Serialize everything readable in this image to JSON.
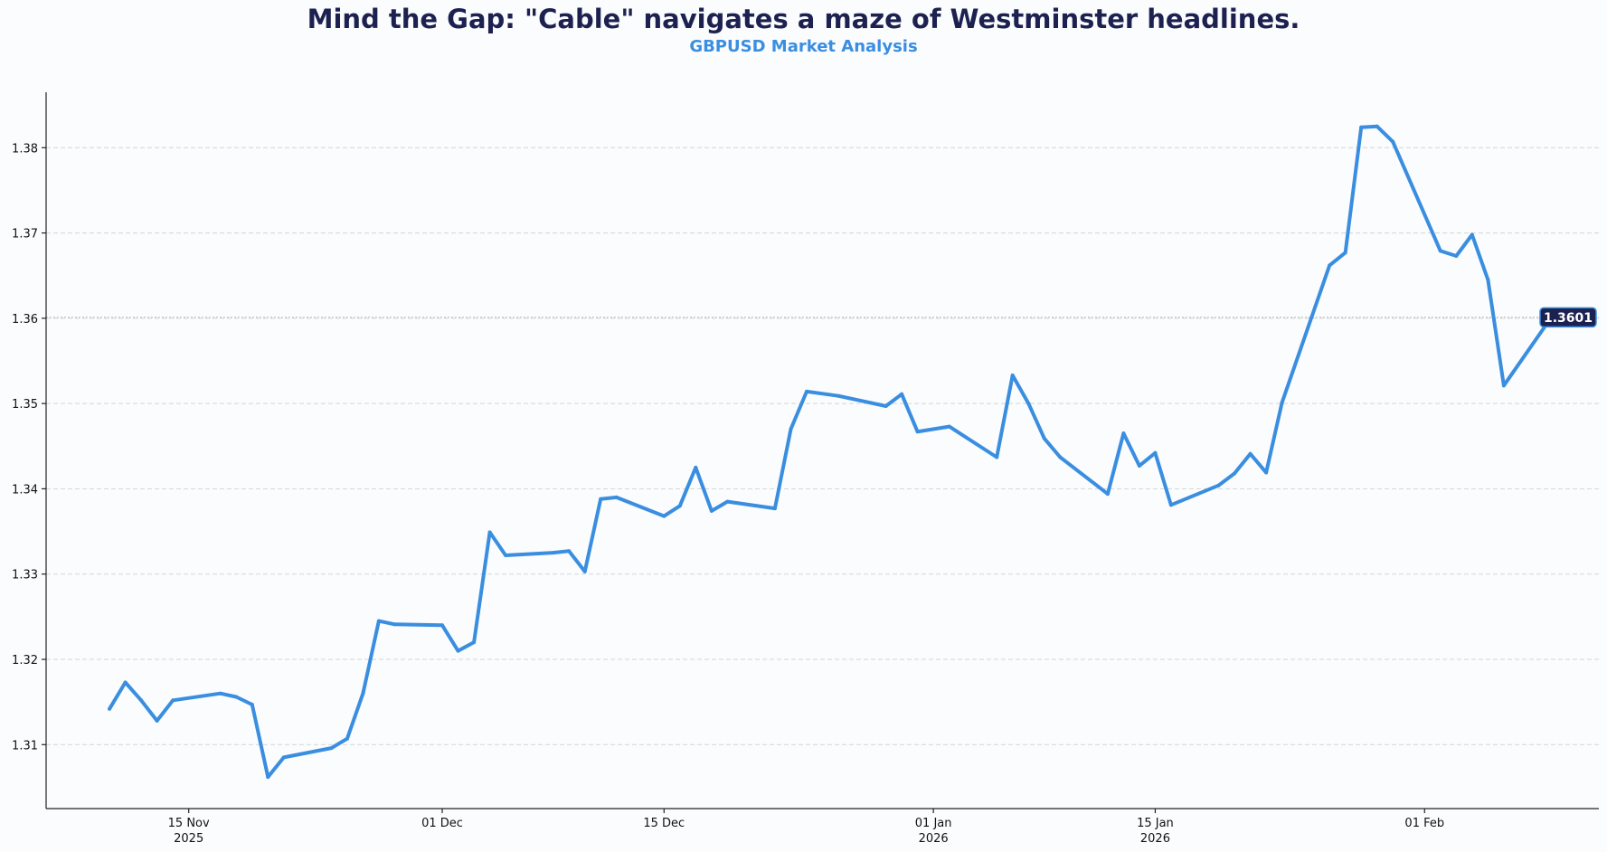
{
  "chart_data": {
    "type": "line",
    "title": "Mind the Gap: \"Cable\" navigates a maze of Westminster headlines.",
    "subtitle": "GBPUSD Market Analysis",
    "xlabel": "",
    "ylabel": "",
    "ylim": [
      1.3025,
      1.3865
    ],
    "yticks": [
      "1.31",
      "1.32",
      "1.33",
      "1.34",
      "1.35",
      "1.36",
      "1.37",
      "1.38"
    ],
    "xlim": [
      "2025-11-06",
      "2026-02-12"
    ],
    "xticks": [
      {
        "date": "2025-11-15",
        "line1": "15 Nov",
        "line2": "2025"
      },
      {
        "date": "2025-12-01",
        "line1": "01 Dec",
        "line2": ""
      },
      {
        "date": "2025-12-15",
        "line1": "15 Dec",
        "line2": ""
      },
      {
        "date": "2026-01-01",
        "line1": "01 Jan",
        "line2": "2026"
      },
      {
        "date": "2026-01-15",
        "line1": "15 Jan",
        "line2": "2026"
      },
      {
        "date": "2026-02-01",
        "line1": "01 Feb",
        "line2": ""
      }
    ],
    "grid": "horizontal dashed",
    "series": [
      {
        "color": "#3a8ee0",
        "points": [
          [
            "2025-11-10",
            1.3142
          ],
          [
            "2025-11-11",
            1.3173
          ],
          [
            "2025-11-12",
            1.3152
          ],
          [
            "2025-11-13",
            1.3128
          ],
          [
            "2025-11-14",
            1.3152
          ],
          [
            "2025-11-17",
            1.316
          ],
          [
            "2025-11-18",
            1.3156
          ],
          [
            "2025-11-19",
            1.3147
          ],
          [
            "2025-11-20",
            1.3062
          ],
          [
            "2025-11-21",
            1.3085
          ],
          [
            "2025-11-24",
            1.3096
          ],
          [
            "2025-11-25",
            1.3107
          ],
          [
            "2025-11-26",
            1.316
          ],
          [
            "2025-11-27",
            1.3245
          ],
          [
            "2025-11-28",
            1.3241
          ],
          [
            "2025-12-01",
            1.324
          ],
          [
            "2025-12-02",
            1.321
          ],
          [
            "2025-12-03",
            1.322
          ],
          [
            "2025-12-04",
            1.3349
          ],
          [
            "2025-12-05",
            1.3322
          ],
          [
            "2025-12-08",
            1.3325
          ],
          [
            "2025-12-09",
            1.3327
          ],
          [
            "2025-12-10",
            1.3303
          ],
          [
            "2025-12-11",
            1.3388
          ],
          [
            "2025-12-12",
            1.339
          ],
          [
            "2025-12-15",
            1.3368
          ],
          [
            "2025-12-16",
            1.338
          ],
          [
            "2025-12-17",
            1.3425
          ],
          [
            "2025-12-18",
            1.3374
          ],
          [
            "2025-12-19",
            1.3385
          ],
          [
            "2025-12-22",
            1.3377
          ],
          [
            "2025-12-23",
            1.347
          ],
          [
            "2025-12-24",
            1.3514
          ],
          [
            "2025-12-26",
            1.3509
          ],
          [
            "2025-12-29",
            1.3497
          ],
          [
            "2025-12-30",
            1.3511
          ],
          [
            "2025-12-31",
            1.3467
          ],
          [
            "2026-01-02",
            1.3473
          ],
          [
            "2026-01-05",
            1.3437
          ],
          [
            "2026-01-06",
            1.3533
          ],
          [
            "2026-01-07",
            1.35
          ],
          [
            "2026-01-08",
            1.3459
          ],
          [
            "2026-01-09",
            1.3437
          ],
          [
            "2026-01-12",
            1.3394
          ],
          [
            "2026-01-13",
            1.3465
          ],
          [
            "2026-01-14",
            1.3427
          ],
          [
            "2026-01-15",
            1.3442
          ],
          [
            "2026-01-16",
            1.3381
          ],
          [
            "2026-01-19",
            1.3404
          ],
          [
            "2026-01-20",
            1.3418
          ],
          [
            "2026-01-21",
            1.3441
          ],
          [
            "2026-01-22",
            1.3419
          ],
          [
            "2026-01-23",
            1.3501
          ],
          [
            "2026-01-26",
            1.3662
          ],
          [
            "2026-01-27",
            1.3677
          ],
          [
            "2026-01-28",
            1.3824
          ],
          [
            "2026-01-29",
            1.3825
          ],
          [
            "2026-01-30",
            1.3807
          ],
          [
            "2026-02-02",
            1.3679
          ],
          [
            "2026-02-03",
            1.3673
          ],
          [
            "2026-02-04",
            1.3698
          ],
          [
            "2026-02-05",
            1.3645
          ],
          [
            "2026-02-06",
            1.3521
          ],
          [
            "2026-02-09",
            1.3601
          ]
        ]
      }
    ],
    "last_value": {
      "value": 1.3601,
      "label": "1.3601"
    }
  }
}
